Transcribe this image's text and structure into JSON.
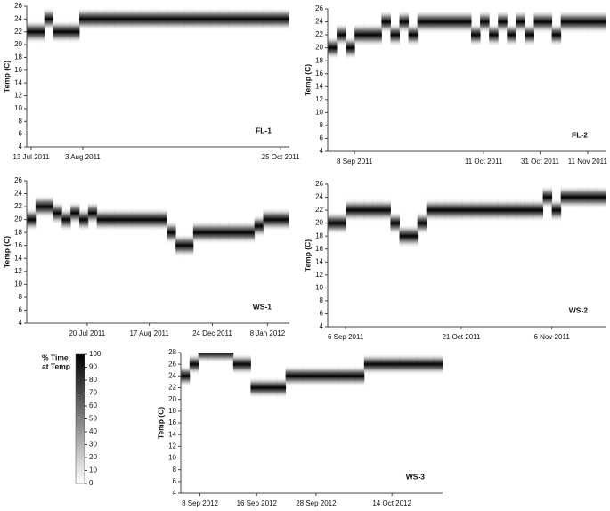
{
  "chart_data": [
    {
      "type": "heatmap",
      "label": "FL-1",
      "ylabel": "Temp (C)",
      "ylim": [
        4,
        26
      ],
      "yticks": [
        4,
        6,
        8,
        10,
        12,
        14,
        16,
        18,
        20,
        22,
        24,
        26
      ],
      "xlim": [
        0,
        30
      ],
      "xticks": [
        {
          "value": 0.5,
          "label": "13 Jul 2011"
        },
        {
          "value": 6.4,
          "label": "3 Aug 2011"
        },
        {
          "value": 29,
          "label": "25 Oct 2011"
        }
      ],
      "values": [
        22,
        22,
        24,
        22,
        22,
        22,
        24,
        24,
        24,
        24,
        24,
        24,
        24,
        24,
        24,
        24,
        24,
        24,
        24,
        24,
        24,
        24,
        24,
        24,
        24,
        24,
        24,
        24,
        24,
        24
      ]
    },
    {
      "type": "heatmap",
      "label": "FL-2",
      "ylabel": "Temp (C)",
      "ylim": [
        4,
        26
      ],
      "yticks": [
        4,
        6,
        8,
        10,
        12,
        14,
        16,
        18,
        20,
        22,
        24,
        26
      ],
      "xlim": [
        0,
        31
      ],
      "xticks": [
        {
          "value": 3,
          "label": "8 Sep 2011"
        },
        {
          "value": 17.4,
          "label": "11 Oct 2011"
        },
        {
          "value": 23.7,
          "label": "31 Oct 2011"
        },
        {
          "value": 29,
          "label": "11 Nov 2011"
        }
      ],
      "values": [
        20,
        22,
        20,
        22,
        22,
        22,
        24,
        22,
        24,
        22,
        24,
        24,
        24,
        24,
        24,
        24,
        22,
        24,
        22,
        24,
        22,
        24,
        22,
        24,
        24,
        22,
        24,
        24,
        24,
        24,
        24
      ]
    },
    {
      "type": "heatmap",
      "label": "WS-1",
      "ylabel": "Temp (C)",
      "ylim": [
        4,
        26
      ],
      "yticks": [
        4,
        6,
        8,
        10,
        12,
        14,
        16,
        18,
        20,
        22,
        24,
        26
      ],
      "xlim": [
        0,
        30
      ],
      "xticks": [
        {
          "value": 6.9,
          "label": "20 Jul 2011"
        },
        {
          "value": 14,
          "label": "17 Aug 2011"
        },
        {
          "value": 21.2,
          "label": "24 Dec 2011"
        },
        {
          "value": 27.5,
          "label": "8 Jan 2012"
        }
      ],
      "values": [
        20,
        22,
        22,
        21,
        20,
        21,
        20,
        21,
        20,
        20,
        20,
        20,
        20,
        20,
        20,
        20,
        18,
        16,
        16,
        18,
        18,
        18,
        18,
        18,
        18,
        18,
        19,
        20,
        20,
        20
      ]
    },
    {
      "type": "heatmap",
      "label": "WS-2",
      "ylabel": "Temp (C)",
      "ylim": [
        4,
        26
      ],
      "yticks": [
        4,
        6,
        8,
        10,
        12,
        14,
        16,
        18,
        20,
        22,
        24,
        26
      ],
      "xlim": [
        0,
        31
      ],
      "xticks": [
        {
          "value": 2,
          "label": "6 Sep 2011"
        },
        {
          "value": 14.9,
          "label": "21 Oct 2011"
        },
        {
          "value": 25,
          "label": "6 Nov 2011"
        }
      ],
      "values": [
        20,
        20,
        22,
        22,
        22,
        22,
        22,
        20,
        18,
        18,
        20,
        22,
        22,
        22,
        22,
        22,
        22,
        22,
        22,
        22,
        22,
        22,
        22,
        22,
        24,
        22,
        24,
        24,
        24,
        24,
        24
      ]
    },
    {
      "type": "heatmap",
      "label": "WS-3",
      "ylabel": "Temp (C)",
      "ylim": [
        4,
        28
      ],
      "yticks": [
        4,
        6,
        8,
        10,
        12,
        14,
        16,
        18,
        20,
        22,
        24,
        26,
        28
      ],
      "xlim": [
        0,
        30
      ],
      "xticks": [
        {
          "value": 2.2,
          "label": "8 Sep 2012"
        },
        {
          "value": 8.7,
          "label": "16 Sep 2012"
        },
        {
          "value": 15.5,
          "label": "28 Sep 2012"
        },
        {
          "value": 24.2,
          "label": "14 Oct 2012"
        }
      ],
      "values": [
        24,
        26,
        28,
        28,
        28,
        28,
        26,
        26,
        22,
        22,
        22,
        22,
        24,
        24,
        24,
        24,
        24,
        24,
        24,
        24,
        24,
        26,
        26,
        26,
        26,
        26,
        26,
        26,
        26,
        26
      ]
    }
  ],
  "colorbar": {
    "title": [
      "% Time",
      "at Temp"
    ],
    "lim": [
      0,
      100
    ],
    "ticks": [
      0,
      10,
      20,
      30,
      40,
      50,
      60,
      70,
      80,
      90,
      100
    ]
  }
}
